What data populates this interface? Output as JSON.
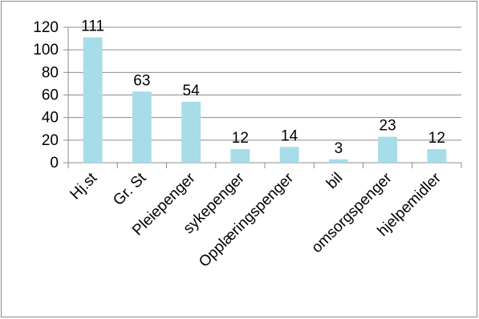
{
  "chart_data": {
    "type": "bar",
    "categories": [
      "Hj.st",
      "Gr. St",
      "Pleiepenger",
      "sykepenger",
      "Opplæringspenger",
      "bil",
      "omsorgspenger",
      "hjelpemidler"
    ],
    "values": [
      111,
      63,
      54,
      12,
      14,
      3,
      23,
      12
    ],
    "title": "",
    "xlabel": "",
    "ylabel": "",
    "ylim": [
      0,
      120
    ],
    "yticks": [
      0,
      20,
      40,
      60,
      80,
      100,
      120
    ],
    "grid": true,
    "legend": "none",
    "bar_color": "#a6dde8",
    "grid_color": "#8c8c8c"
  }
}
